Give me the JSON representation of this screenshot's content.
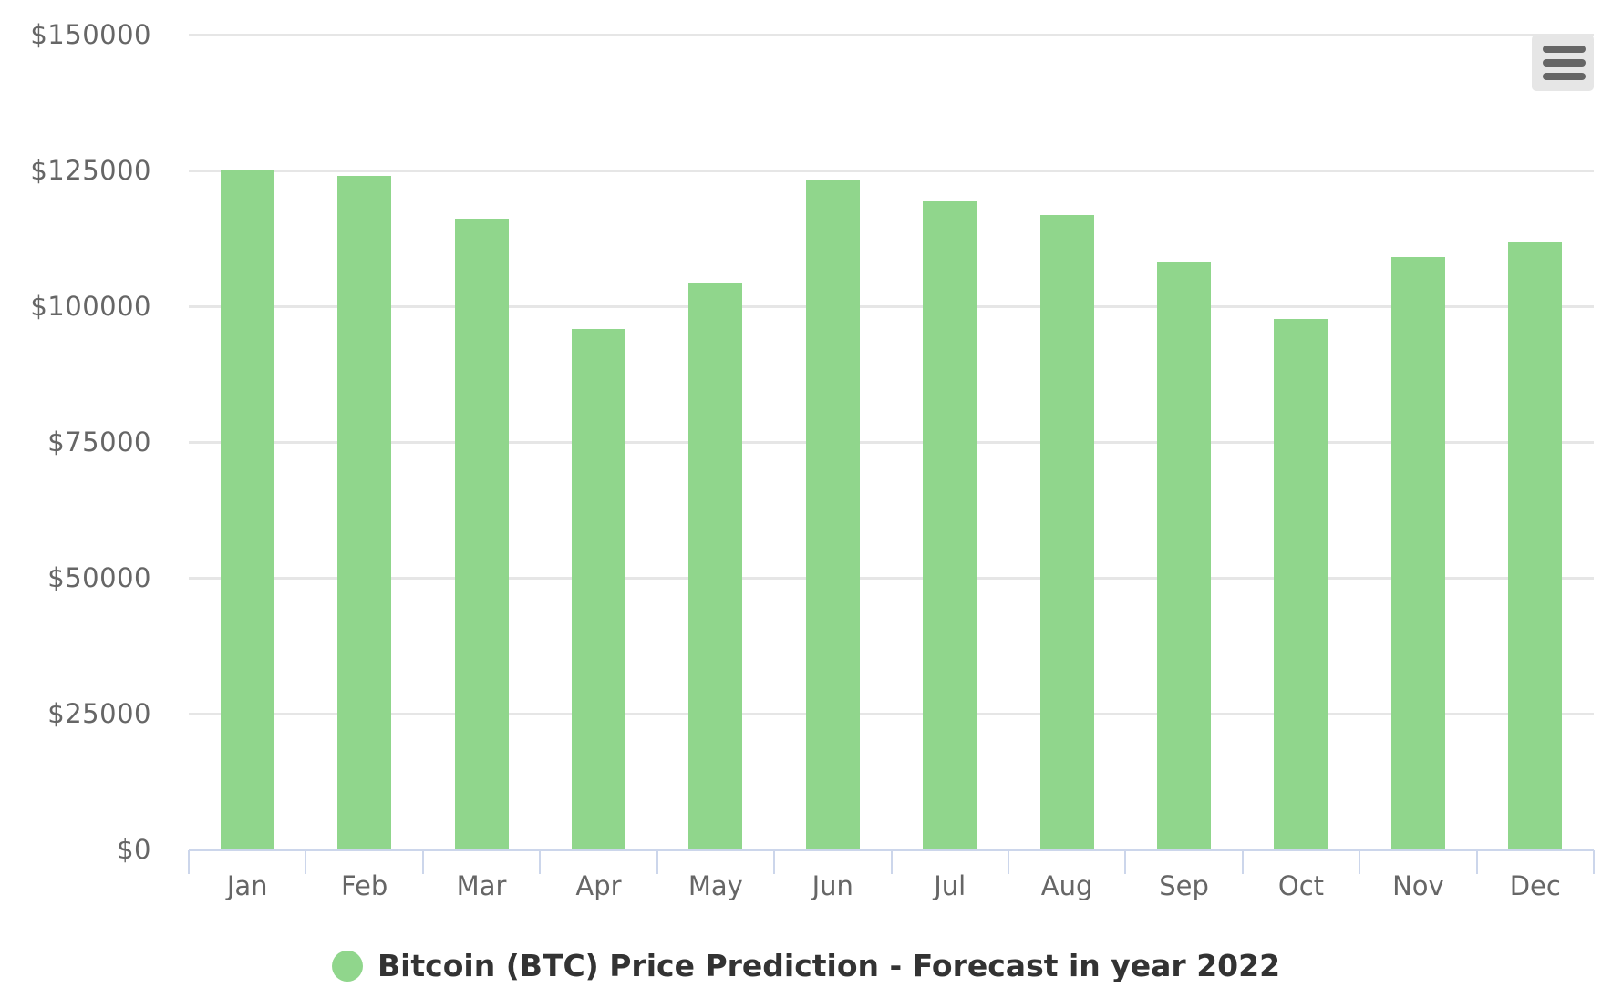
{
  "menu": {
    "icon": "hamburger-menu-icon"
  },
  "colors": {
    "bar": "#90d68c",
    "grid": "#e6e6e6",
    "axis": "#ccd6eb",
    "label": "#666666",
    "legend_text": "#333333"
  },
  "legend": {
    "label": "Bitcoin (BTC) Price Prediction - Forecast in year 2022"
  },
  "yaxis": {
    "ticks": [
      "$150000",
      "$125000",
      "$100000",
      "$75000",
      "$50000",
      "$25000",
      "$0"
    ]
  },
  "xaxis": {
    "ticks": [
      "Jan",
      "Feb",
      "Mar",
      "Apr",
      "May",
      "Jun",
      "Jul",
      "Aug",
      "Sep",
      "Oct",
      "Nov",
      "Dec"
    ]
  },
  "chart_data": {
    "type": "bar",
    "title": "",
    "xlabel": "",
    "ylabel": "",
    "categories": [
      "Jan",
      "Feb",
      "Mar",
      "Apr",
      "May",
      "Jun",
      "Jul",
      "Aug",
      "Sep",
      "Oct",
      "Nov",
      "Dec"
    ],
    "series": [
      {
        "name": "Bitcoin (BTC) Price Prediction - Forecast in year 2022",
        "values": [
          125000,
          124000,
          116100,
          95800,
          104400,
          123300,
          119500,
          116700,
          108100,
          97700,
          109100,
          111900
        ]
      }
    ],
    "ylim": [
      0,
      150000
    ],
    "yticks": [
      0,
      25000,
      50000,
      75000,
      100000,
      125000,
      150000
    ],
    "grid": true,
    "legend_position": "bottom"
  }
}
